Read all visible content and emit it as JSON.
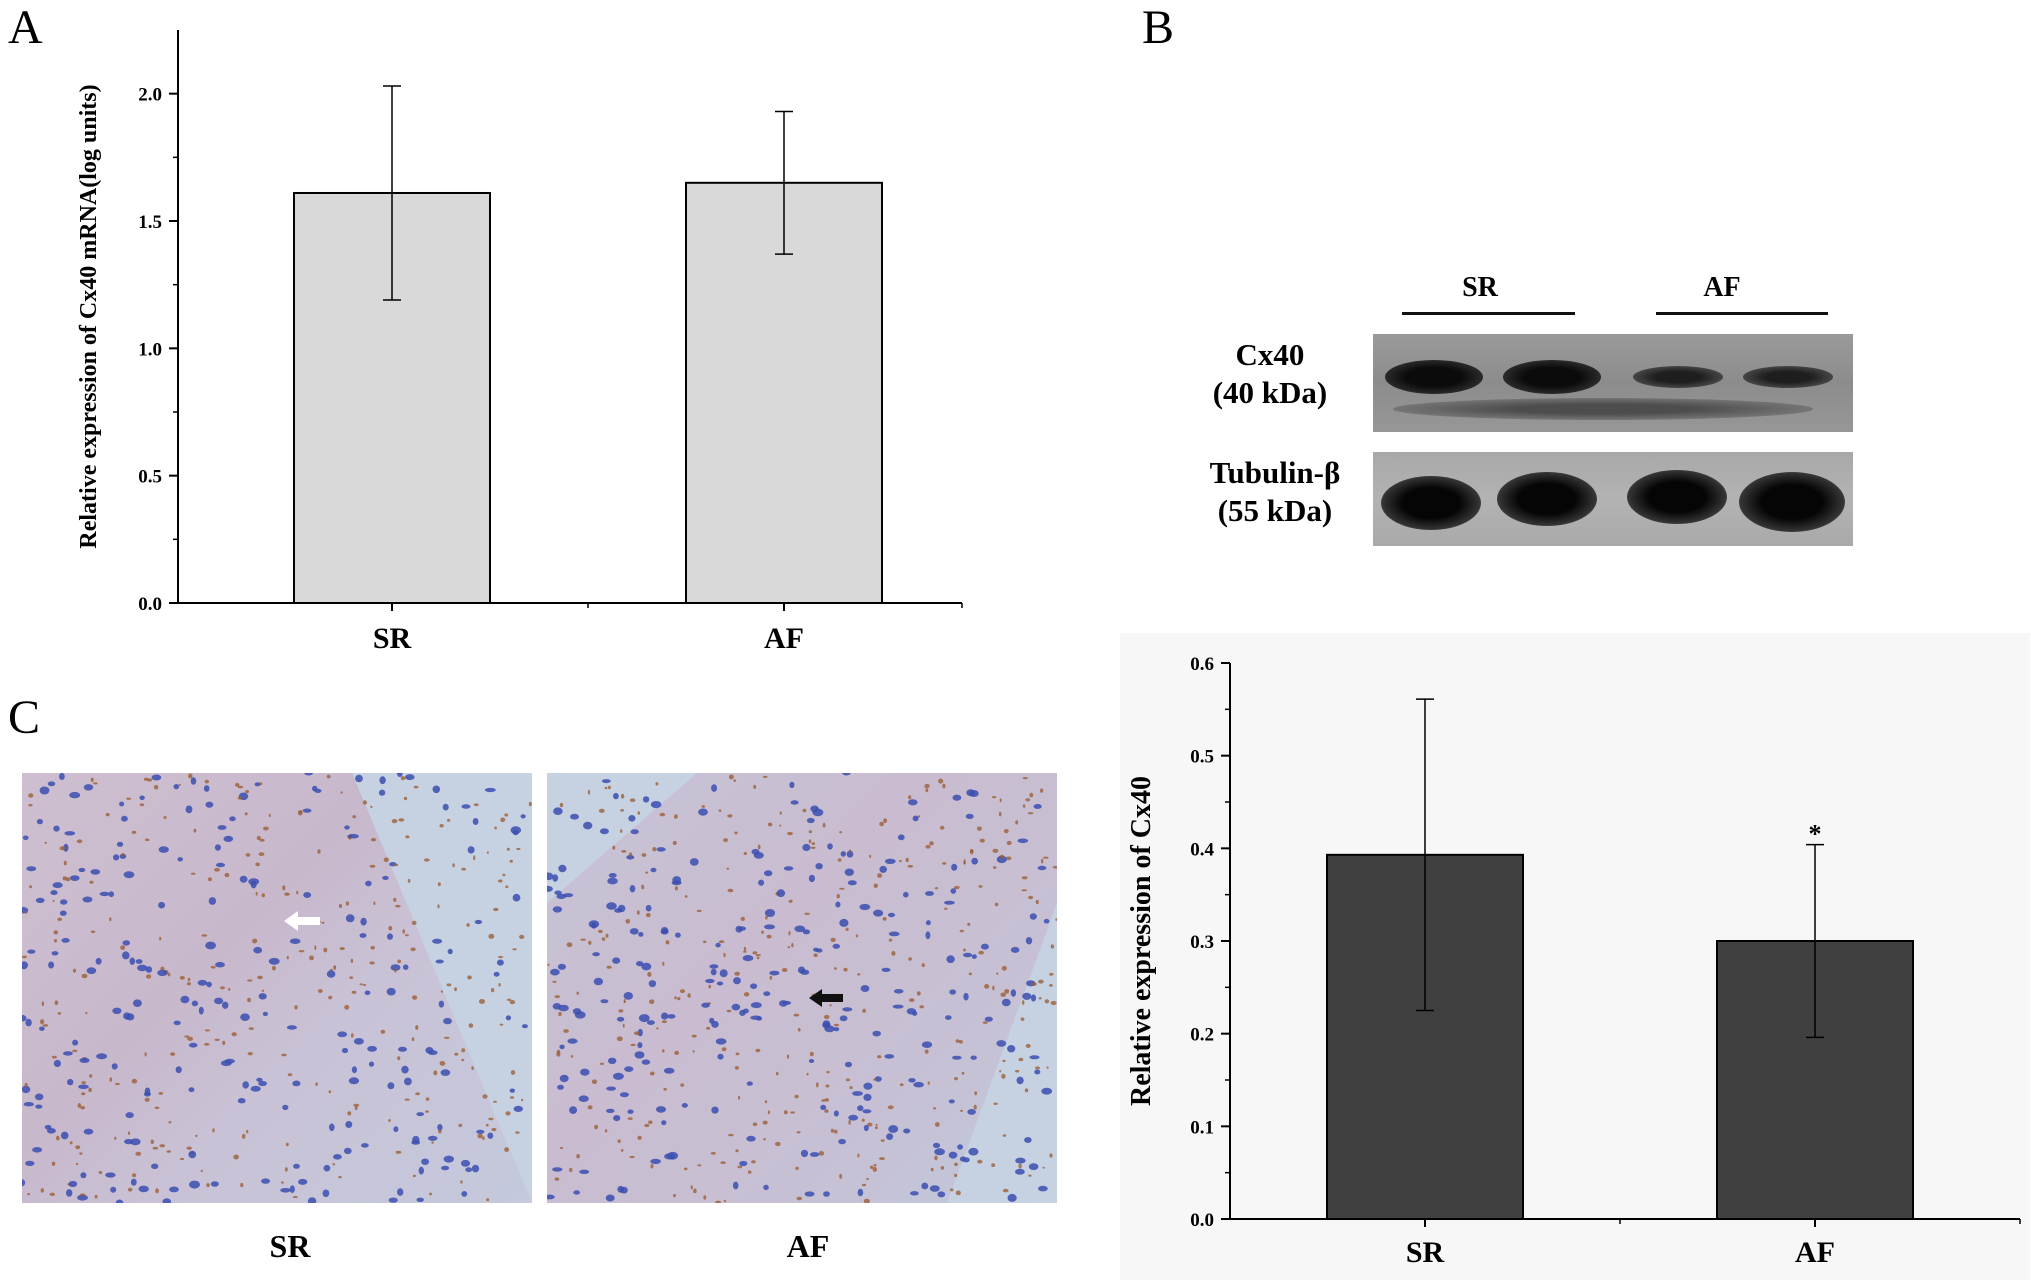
{
  "panels": {
    "a": "A",
    "b": "B",
    "c": "C"
  },
  "chart_data": [
    {
      "type": "bar",
      "panel": "A",
      "categories": [
        "SR",
        "AF"
      ],
      "values": [
        1.61,
        1.65
      ],
      "error": [
        0.42,
        0.28
      ],
      "ylabel": "Relative expression of Cx40 mRNA(log units)",
      "xlabel": "",
      "ylim": [
        0,
        2.25
      ],
      "yticks": [
        "0.0",
        "0.5",
        "1.0",
        "1.5",
        "2.0"
      ],
      "bar_color": "#d9d9d9",
      "grid": false
    },
    {
      "type": "bar",
      "panel": "B",
      "categories": [
        "SR",
        "AF"
      ],
      "values": [
        0.393,
        0.3
      ],
      "error": [
        0.168,
        0.104
      ],
      "annotations": [
        "",
        "*"
      ],
      "ylabel": "Relative expression of Cx40",
      "xlabel": "",
      "ylim": [
        0,
        0.6
      ],
      "yticks": [
        "0.0",
        "0.1",
        "0.2",
        "0.3",
        "0.4",
        "0.5",
        "0.6"
      ],
      "bar_color": "#404040",
      "background": "#f7f7f7",
      "grid": false
    }
  ],
  "blot": {
    "group_sr": "SR",
    "group_af": "AF",
    "row1_name": "Cx40",
    "row1_size": "(40 kDa)",
    "row2_name": "Tubulin-β",
    "row2_size": "(55 kDa)"
  },
  "micrographs": {
    "left_caption": "SR",
    "right_caption": "AF",
    "left_arrow": "white-arrow-icon",
    "right_arrow": "black-arrow-icon"
  }
}
